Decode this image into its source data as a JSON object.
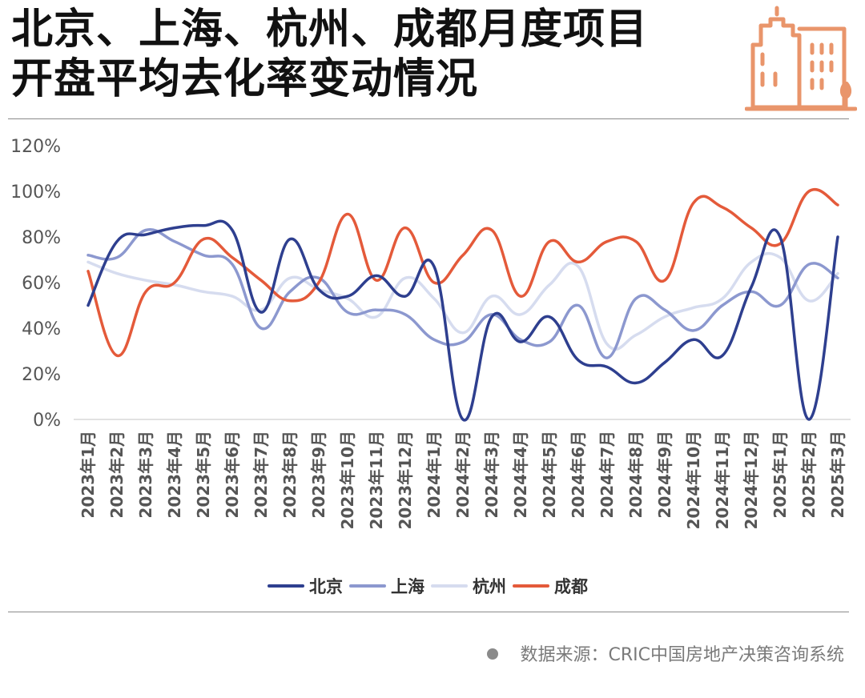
{
  "title": {
    "line1": "北京、上海、杭州、成都月度项目",
    "line2": "开盘平均去化率变动情况"
  },
  "logo_icon": "city-buildings-icon",
  "source": "数据来源：CRIC中国房地产决策咨询系统",
  "colors": {
    "beijing": "#2e3f8f",
    "shanghai": "#8c98cf",
    "hangzhou": "#d6dcef",
    "chengdu": "#e45a3a",
    "accent": "#e9956b",
    "grid": "#d9d9d9"
  },
  "chart_data": {
    "type": "line",
    "categories": [
      "2023年1月",
      "2023年2月",
      "2023年3月",
      "2023年4月",
      "2023年5月",
      "2023年6月",
      "2023年7月",
      "2023年8月",
      "2023年9月",
      "2023年10月",
      "2023年11月",
      "2023年12月",
      "2024年1月",
      "2024年2月",
      "2024年3月",
      "2024年4月",
      "2024年5月",
      "2024年6月",
      "2024年7月",
      "2024年8月",
      "2024年9月",
      "2024年10月",
      "2024年11月",
      "2024年12月",
      "2025年1月",
      "2025年2月",
      "2025年3月"
    ],
    "series": [
      {
        "name": "北京",
        "color": "#2e3f8f",
        "values": [
          50,
          78,
          81,
          84,
          85,
          83,
          47,
          79,
          57,
          54,
          63,
          54,
          67,
          0,
          45,
          34,
          45,
          26,
          23,
          16,
          25,
          35,
          28,
          58,
          80,
          0,
          80
        ]
      },
      {
        "name": "上海",
        "color": "#8c98cf",
        "values": [
          72,
          71,
          83,
          78,
          72,
          68,
          40,
          56,
          62,
          47,
          48,
          46,
          35,
          34,
          46,
          35,
          34,
          50,
          27,
          53,
          48,
          39,
          50,
          56,
          50,
          68,
          62
        ]
      },
      {
        "name": "杭州",
        "color": "#d6dcef",
        "values": [
          69,
          64,
          61,
          59,
          56,
          54,
          48,
          62,
          57,
          53,
          45,
          62,
          53,
          38,
          54,
          46,
          59,
          67,
          33,
          37,
          45,
          49,
          53,
          69,
          71,
          52,
          64
        ]
      },
      {
        "name": "成都",
        "color": "#e45a3a",
        "values": [
          65,
          28,
          56,
          60,
          79,
          71,
          61,
          52,
          60,
          90,
          61,
          84,
          60,
          72,
          83,
          54,
          78,
          69,
          78,
          78,
          61,
          95,
          93,
          84,
          77,
          100,
          94
        ]
      }
    ],
    "ylim": [
      0,
      120
    ],
    "yticks": [
      "0%",
      "20%",
      "40%",
      "60%",
      "80%",
      "100%",
      "120%"
    ],
    "grid": "horizontal, bottom axis only",
    "legend": "bottom-center"
  }
}
